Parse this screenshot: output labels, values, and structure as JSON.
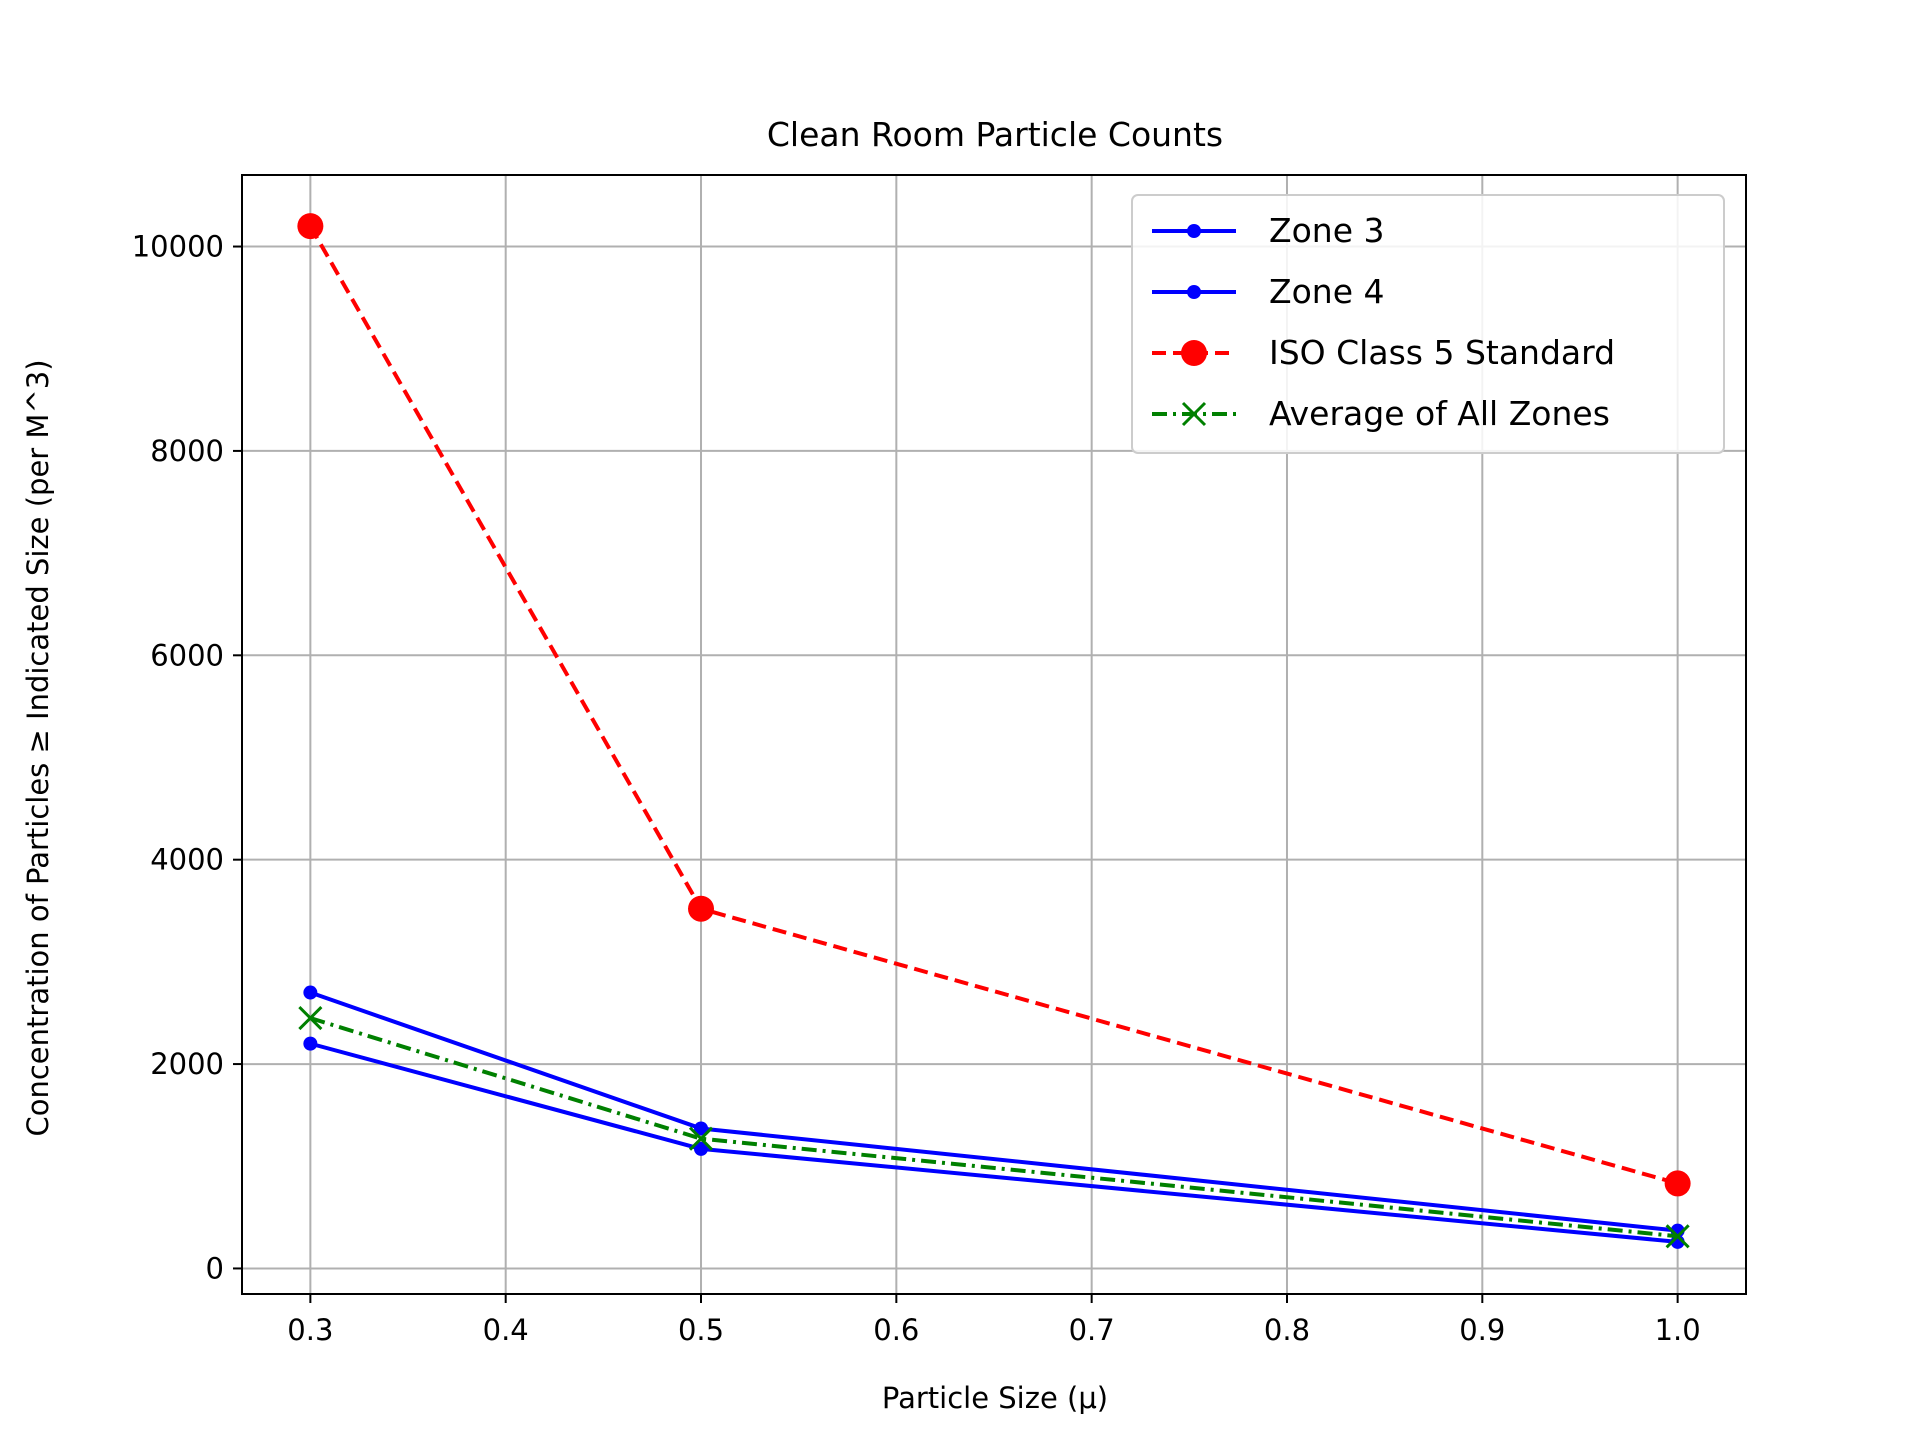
{
  "chart_data": {
    "type": "line",
    "title": "Clean Room Particle Counts",
    "xlabel": "Particle Size (μ)",
    "ylabel": "Concentration of Particles ≥ Indicated Size (per M^3)",
    "xlim": [
      0.265,
      1.035
    ],
    "ylim": [
      -250,
      10700
    ],
    "xticks": [
      0.3,
      0.4,
      0.5,
      0.6,
      0.7,
      0.8,
      0.9,
      1.0
    ],
    "xtick_labels": [
      "0.3",
      "0.4",
      "0.5",
      "0.6",
      "0.7",
      "0.8",
      "0.9",
      "1.0"
    ],
    "yticks": [
      0,
      2000,
      4000,
      6000,
      8000,
      10000
    ],
    "ytick_labels": [
      "0",
      "2000",
      "4000",
      "6000",
      "8000",
      "10000"
    ],
    "grid": true,
    "legend_position": "top-right",
    "x": [
      0.3,
      0.5,
      1.0
    ],
    "series": [
      {
        "name": "Zone 3",
        "values": [
          2700,
          1370,
          370
        ],
        "color": "#0000ff",
        "line_style": "solid",
        "marker": "dot"
      },
      {
        "name": "Zone 4",
        "values": [
          2200,
          1170,
          260
        ],
        "color": "#0000ff",
        "line_style": "solid",
        "marker": "dot"
      },
      {
        "name": "ISO Class 5 Standard",
        "values": [
          10200,
          3520,
          832
        ],
        "color": "#ff0000",
        "line_style": "dashed",
        "marker": "large-dot"
      },
      {
        "name": "Average of All Zones",
        "values": [
          2450,
          1270,
          315
        ],
        "color": "#008000",
        "line_style": "dash-dot",
        "marker": "x"
      }
    ]
  }
}
